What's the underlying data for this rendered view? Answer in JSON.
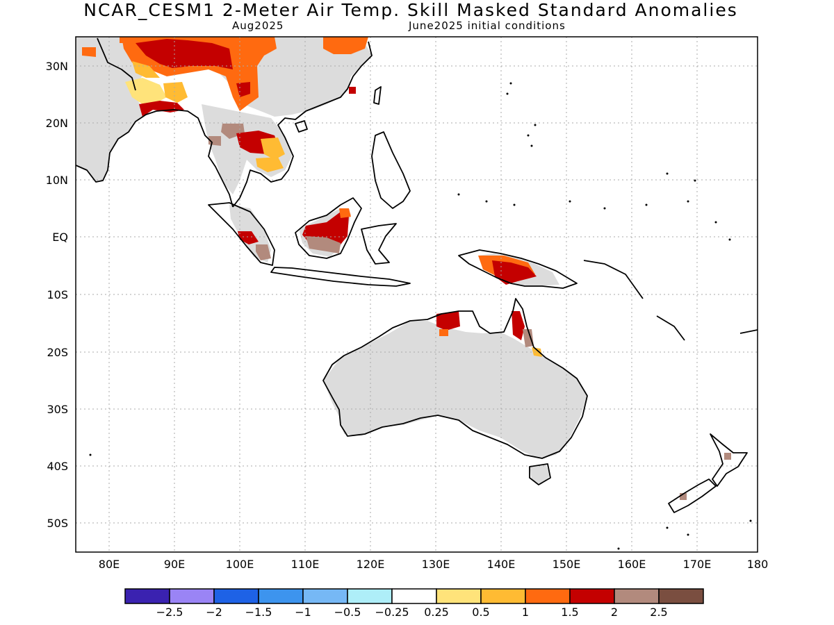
{
  "title": "NCAR_CESM1 2-Meter Air Temp. Skill Masked Standard Anomalies",
  "subtitle_left": "Aug2025",
  "subtitle_right": "June2025 initial conditions",
  "lat_labels": [
    "30N",
    "20N",
    "10N",
    "EQ",
    "10S",
    "20S",
    "30S",
    "40S",
    "50S"
  ],
  "lon_labels": [
    "80E",
    "90E",
    "100E",
    "110E",
    "120E",
    "130E",
    "140E",
    "150E",
    "160E",
    "170E",
    "180"
  ],
  "colorbar": {
    "colors": [
      "#3a22b0",
      "#9a84f5",
      "#1e62e6",
      "#3d94ee",
      "#76b8f5",
      "#aeeef8",
      "#ffffff",
      "#ffe37a",
      "#ffbb33",
      "#ff6a10",
      "#c40000",
      "#b28a7d",
      "#7a4e40"
    ],
    "labels": [
      "-2.5",
      "-2",
      "-1.5",
      "-1",
      "-0.5",
      "-0.25",
      "0.25",
      "0.5",
      "1",
      "1.5",
      "2",
      "2.5"
    ]
  },
  "colors": {
    "land_mask": "#dcdcdc",
    "grid": "#aaaaaa"
  }
}
